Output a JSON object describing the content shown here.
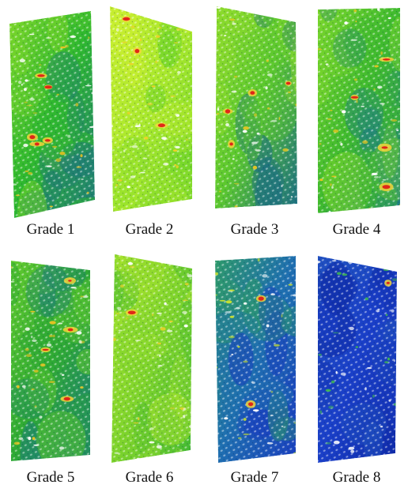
{
  "panels": [
    {
      "caption": "Grade 1",
      "base": "#2fb82f",
      "mid": "#7fd82a",
      "dark": "#1f7a7a",
      "accent": "#e8c020",
      "defects": 5
    },
    {
      "caption": "Grade 2",
      "base": "#a8e82c",
      "mid": "#c8ee30",
      "dark": "#6fd42a",
      "accent": "#f0d028",
      "defects": 3
    },
    {
      "caption": "Grade 3",
      "base": "#5cc82e",
      "mid": "#8fdc2c",
      "dark": "#1d6f83",
      "accent": "#e8c822",
      "defects": 4
    },
    {
      "caption": "Grade 4",
      "base": "#3fba2e",
      "mid": "#7ad62c",
      "dark": "#1f7f86",
      "accent": "#ecc620",
      "defects": 4
    },
    {
      "caption": "Grade 5",
      "base": "#2faa34",
      "mid": "#62ca2e",
      "dark": "#1d7f7a",
      "accent": "#e6c222",
      "defects": 4
    },
    {
      "caption": "Grade 6",
      "base": "#7fd42c",
      "mid": "#a8e42e",
      "dark": "#3fb834",
      "accent": "#e8d02a",
      "defects": 1
    },
    {
      "caption": "Grade 7",
      "base": "#1f6fb0",
      "mid": "#2e9a6a",
      "dark": "#1a3fbf",
      "accent": "#c8e030",
      "defects": 2
    },
    {
      "caption": "Grade 8",
      "base": "#1a3fc8",
      "mid": "#2050c0",
      "dark": "#0f2aa8",
      "accent": "#3fb850",
      "defects": 1
    }
  ]
}
